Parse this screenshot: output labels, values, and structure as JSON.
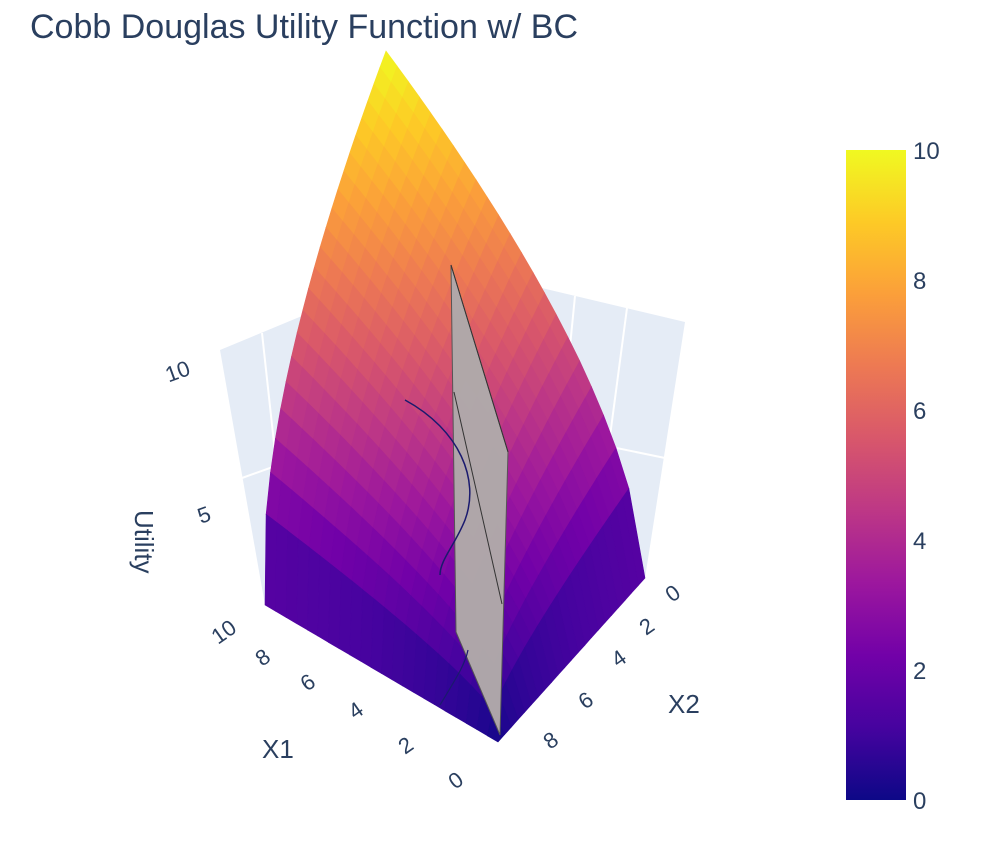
{
  "chart_data": {
    "type": "surface",
    "title": "Cobb Douglas Utility Function w/ BC",
    "surface": {
      "name": "Utility",
      "function": "U = X1^0.5 * X2^0.5",
      "x1_range": [
        0,
        10
      ],
      "x2_range": [
        0,
        10
      ],
      "z_range": [
        0,
        10
      ],
      "colorscale": [
        "#0d0887",
        "#46039f",
        "#7201a8",
        "#9c179e",
        "#bd3786",
        "#d8576b",
        "#ed7953",
        "#fb9f3a",
        "#fdca26",
        "#f0f921"
      ]
    },
    "budget_constraint": {
      "description": "vertical plane",
      "x1_range": [
        0,
        10
      ],
      "x2_values": [
        5,
        5
      ],
      "z_range": [
        0,
        12
      ],
      "color": "#b0a9aa"
    },
    "axes": {
      "x1": {
        "title": "X1",
        "ticks": [
          "0",
          "2",
          "4",
          "6",
          "8",
          "10"
        ]
      },
      "x2": {
        "title": "X2",
        "ticks": [
          "0",
          "2",
          "4",
          "6",
          "8"
        ]
      },
      "z": {
        "title": "Utility",
        "ticks": [
          "5",
          "10"
        ]
      }
    },
    "colorbar": {
      "min": 0,
      "max": 10,
      "ticks": [
        "0",
        "2",
        "4",
        "6",
        "8",
        "10"
      ]
    },
    "grid": true,
    "background_color": "#e5ecf6"
  }
}
